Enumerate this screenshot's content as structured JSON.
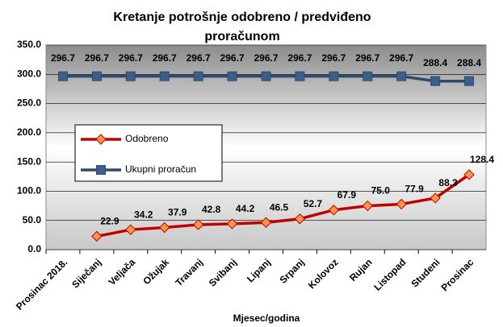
{
  "chart_data": {
    "type": "line",
    "title": "Kretanje potrošnje odobreno / predviđeno proračunom",
    "x_label": "Mjesec/godina",
    "categories": [
      "Prosinac 2018.",
      "Siječanj",
      "Veljača",
      "Ožujak",
      "Travanj",
      "Svibanj",
      "Lipanj",
      "Srpanj",
      "Kolovoz",
      "Rujan",
      "Listopad",
      "Studeni",
      "Prosinac"
    ],
    "series": [
      {
        "name": "Odobreno",
        "color": "#c00000",
        "marker_color": "#f79646",
        "marker": "diamond",
        "values": [
          null,
          22.9,
          34.2,
          37.9,
          42.8,
          44.2,
          46.5,
          52.7,
          67.9,
          75,
          77.9,
          88.3,
          128.4
        ],
        "value_labels": [
          null,
          "22.9",
          "34.2",
          "37.9",
          "42.8",
          "44.2",
          "46.5",
          "52.7",
          "67.9",
          "75.0",
          "77.9",
          "88.3",
          "128.4"
        ]
      },
      {
        "name": "Ukupni proračun",
        "color": "#2e4a6e",
        "marker_color": "#3d5f87",
        "marker": "square",
        "values": [
          296.7,
          296.7,
          296.7,
          296.7,
          296.7,
          296.7,
          296.7,
          296.7,
          296.7,
          296.7,
          296.7,
          288.4,
          288.4
        ]
      }
    ],
    "ylim": [
      0,
      350
    ],
    "yticks": [
      {
        "value": 0,
        "label": "0.0"
      },
      {
        "value": 50,
        "label": "50.0"
      },
      {
        "value": 100,
        "label": "100.0"
      },
      {
        "value": 150,
        "label": "150.0"
      },
      {
        "value": 200,
        "label": "200.0"
      },
      {
        "value": 250,
        "label": "250.0"
      },
      {
        "value": 300,
        "label": "300.0"
      },
      {
        "value": 350,
        "label": "350.0"
      }
    ],
    "grid": true
  }
}
